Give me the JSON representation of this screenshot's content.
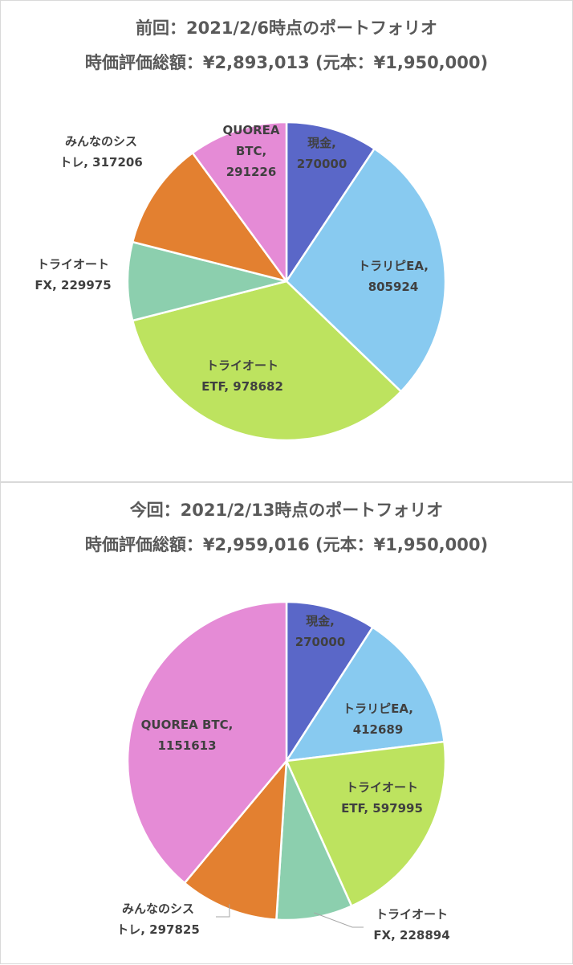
{
  "chart_data": [
    {
      "type": "pie",
      "title": "前回：2021/2/6時点のポートフォリオ",
      "subtitle": "時価評価総額：¥2,893,013 (元本：¥1,950,000)",
      "start_angle_deg": 0,
      "slices": [
        {
          "line1": "現金,",
          "line2": "270000",
          "value": 270000,
          "color": "#5a67c8",
          "text_color": "#404040"
        },
        {
          "line1": "トラリピEA,",
          "line2": "805924",
          "value": 805924,
          "color": "#88caf0",
          "text_color": "#404040"
        },
        {
          "line1": "トライオート",
          "line2": "ETF, 978682",
          "value": 978682,
          "color": "#bde35f",
          "text_color": "#404040"
        },
        {
          "line1": "トライオート",
          "line2": "FX, 229975",
          "value": 229975,
          "color": "#8ccfae",
          "text_color": "#404040"
        },
        {
          "line1": "みんなのシス",
          "line2": "トレ, 317206",
          "value": 317206,
          "color": "#e38030",
          "text_color": "#404040"
        },
        {
          "line1": "QUOREA",
          "line2": "BTC,",
          "line3": "291226",
          "value": 291226,
          "color": "#e58bd6",
          "text_color": "#404040"
        }
      ]
    },
    {
      "type": "pie",
      "title": "今回：2021/2/13時点のポートフォリオ",
      "subtitle": "時価評価総額：¥2,959,016 (元本：¥1,950,000)",
      "start_angle_deg": 0,
      "slices": [
        {
          "line1": "現金,",
          "line2": "270000",
          "value": 270000,
          "color": "#5a67c8",
          "text_color": "#404040"
        },
        {
          "line1": "トラリピEA,",
          "line2": "412689",
          "value": 412689,
          "color": "#88caf0",
          "text_color": "#404040"
        },
        {
          "line1": "トライオート",
          "line2": "ETF, 597995",
          "value": 597995,
          "color": "#bde35f",
          "text_color": "#404040"
        },
        {
          "line1": "トライオート",
          "line2": "FX, 228894",
          "value": 228894,
          "color": "#8ccfae",
          "text_color": "#404040"
        },
        {
          "line1": "みんなのシス",
          "line2": "トレ, 297825",
          "value": 297825,
          "color": "#e38030",
          "text_color": "#404040"
        },
        {
          "line1": "QUOREA BTC,",
          "line2": "1151613",
          "value": 1151613,
          "color": "#e58bd6",
          "text_color": "#404040"
        }
      ]
    }
  ]
}
